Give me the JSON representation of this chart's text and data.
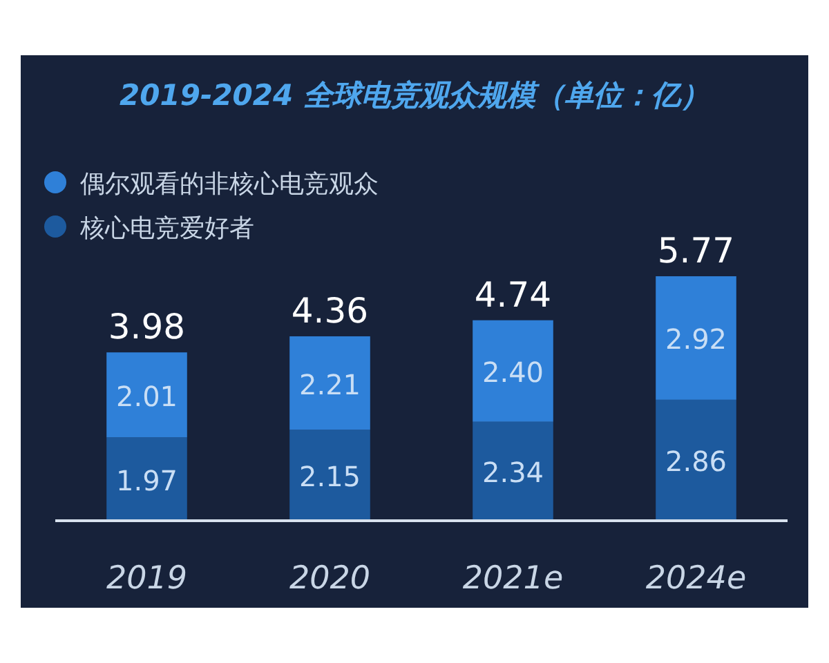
{
  "chart_data": {
    "type": "bar",
    "title": "2019-2024 全球电竞观众规模（单位：亿）",
    "categories": [
      "2019",
      "2020",
      "2021e",
      "2024e"
    ],
    "stacked": true,
    "legend": "top left",
    "series": [
      {
        "name": "核心电竞爱好者",
        "color": "#1d5a9e",
        "values": [
          1.97,
          2.15,
          2.34,
          2.86
        ],
        "value_labels": [
          "1.97",
          "2.15",
          "2.34",
          "2.86"
        ]
      },
      {
        "name": "偶尔观看的非核心电竞观众",
        "color": "#2f80d8",
        "values": [
          2.01,
          2.21,
          2.4,
          2.92
        ],
        "value_labels": [
          "2.01",
          "2.21",
          "2.40",
          "2.92"
        ]
      }
    ],
    "totals": [
      "3.98",
      "4.36",
      "4.74",
      "5.77"
    ]
  }
}
